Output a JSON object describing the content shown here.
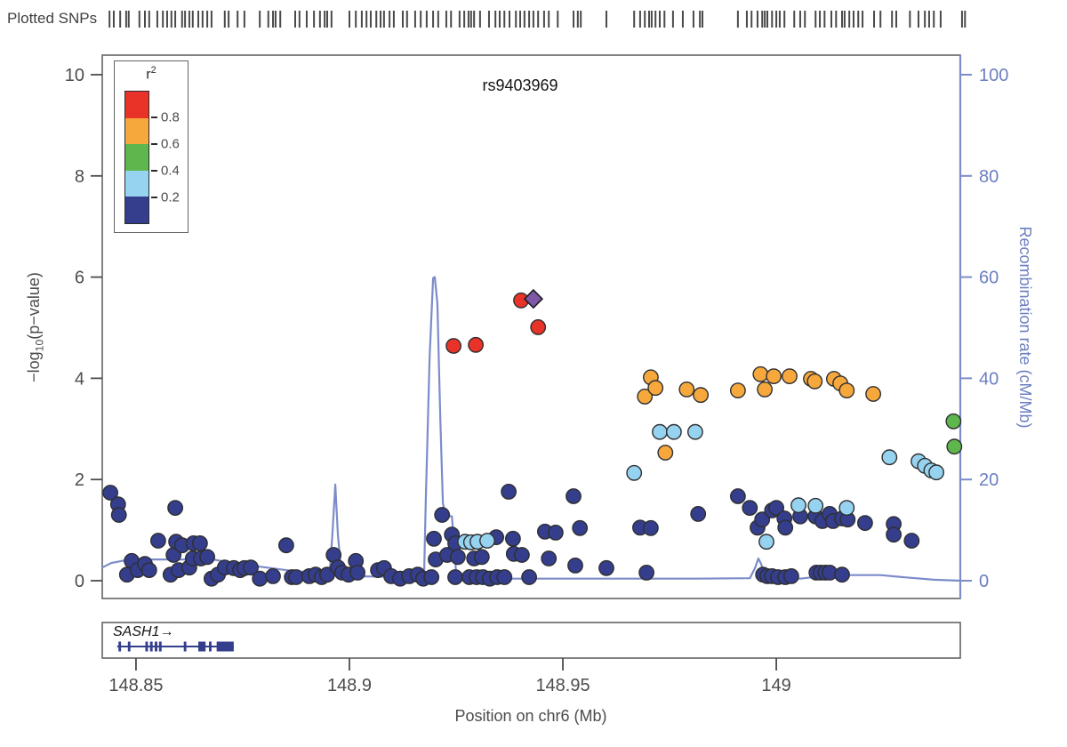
{
  "figure": {
    "rug_label": "Plotted SNPs",
    "title": "rs9403969",
    "x_axis": {
      "label": "Position on chr6 (Mb)",
      "tick_labels": [
        "148.85",
        "148.9",
        "148.95",
        "149"
      ],
      "tick_values": [
        148.85,
        148.9,
        148.95,
        149.0
      ]
    },
    "y_left": {
      "label_prefix": "−log",
      "label_sub": "10",
      "label_suffix": "(p−value)",
      "tick_values": [
        0,
        2,
        4,
        6,
        8,
        10
      ]
    },
    "y_right": {
      "label": "Recombination rate (cM/Mb)",
      "tick_values": [
        0,
        20,
        40,
        60,
        80,
        100
      ]
    },
    "legend": {
      "title_base": "r",
      "title_sup": "2",
      "tick_labels": [
        "0.8",
        "0.6",
        "0.4",
        "0.2"
      ]
    },
    "gene_arrow": "→"
  },
  "colors": {
    "r2_80_100": "#EA3328",
    "r2_60_80": "#F7A83D",
    "r2_40_60": "#5EB64C",
    "r2_20_40": "#96D3F0",
    "r2_0_20": "#343E8D",
    "index_snp": "#7E57A5",
    "recomb_line": "#7B8CC9",
    "right_axis_text": "#6B7EC0",
    "axis_gray": "#636365",
    "tick_text": "#4C4C4E",
    "rug_tick": "#4A4A4C",
    "point_stroke": "#2F2F31",
    "gene": "#343E8D"
  },
  "chart_data": {
    "type": "scatter",
    "title": "rs9403969",
    "xlabel": "Position on chr6 (Mb)",
    "ylabel_left": "-log10(p-value)",
    "ylabel_right": "Recombination rate (cM/Mb)",
    "xlim": [
      148.8421,
      149.0431
    ],
    "ylim_left": [
      0,
      10.4
    ],
    "ylim_right": [
      0,
      104
    ],
    "legend_bins": [
      "0.8-1.0",
      "0.6-0.8",
      "0.4-0.6",
      "0.2-0.4",
      "0.0-0.2"
    ],
    "index_snp": {
      "name": "rs9403969",
      "pos": 148.9431,
      "logp": 5.57
    },
    "series": [
      {
        "name": "r2_0.0_0.2",
        "color_key": "r2_0_20",
        "points": [
          [
            148.844,
            1.74
          ],
          [
            148.8458,
            1.51
          ],
          [
            148.846,
            1.3
          ],
          [
            148.8479,
            0.12
          ],
          [
            148.849,
            0.39
          ],
          [
            148.8504,
            0.21
          ],
          [
            148.8521,
            0.33
          ],
          [
            148.8531,
            0.21
          ],
          [
            148.8552,
            0.79
          ],
          [
            148.8581,
            0.12
          ],
          [
            148.8588,
            0.51
          ],
          [
            148.8592,
            1.44
          ],
          [
            148.8594,
            0.77
          ],
          [
            148.8608,
            0.7
          ],
          [
            148.86,
            0.21
          ],
          [
            148.8625,
            0.26
          ],
          [
            148.8635,
            0.74
          ],
          [
            148.865,
            0.74
          ],
          [
            148.8633,
            0.44
          ],
          [
            148.8652,
            0.44
          ],
          [
            148.8667,
            0.47
          ],
          [
            148.8677,
            0.04
          ],
          [
            148.8692,
            0.12
          ],
          [
            148.8708,
            0.26
          ],
          [
            148.8729,
            0.25
          ],
          [
            148.8744,
            0.21
          ],
          [
            148.8754,
            0.25
          ],
          [
            148.8769,
            0.26
          ],
          [
            148.879,
            0.04
          ],
          [
            148.8821,
            0.09
          ],
          [
            148.8852,
            0.7
          ],
          [
            148.8865,
            0.07
          ],
          [
            148.8875,
            0.07
          ],
          [
            148.8906,
            0.09
          ],
          [
            148.8921,
            0.12
          ],
          [
            148.8935,
            0.07
          ],
          [
            148.8948,
            0.12
          ],
          [
            148.8963,
            0.51
          ],
          [
            148.8973,
            0.26
          ],
          [
            148.8983,
            0.16
          ],
          [
            148.8998,
            0.12
          ],
          [
            148.9015,
            0.39
          ],
          [
            148.9019,
            0.16
          ],
          [
            148.9067,
            0.21
          ],
          [
            148.9081,
            0.25
          ],
          [
            148.9098,
            0.09
          ],
          [
            148.9119,
            0.04
          ],
          [
            148.914,
            0.09
          ],
          [
            148.916,
            0.12
          ],
          [
            148.9173,
            0.04
          ],
          [
            148.9192,
            0.07
          ],
          [
            148.9198,
            0.83
          ],
          [
            148.9202,
            0.42
          ],
          [
            148.9217,
            1.3
          ],
          [
            148.9229,
            0.51
          ],
          [
            148.924,
            0.91
          ],
          [
            148.9248,
            0.74
          ],
          [
            148.9248,
            0.07
          ],
          [
            148.9254,
            0.47
          ],
          [
            148.9281,
            0.07
          ],
          [
            148.9292,
            0.44
          ],
          [
            148.9298,
            0.07
          ],
          [
            148.931,
            0.47
          ],
          [
            148.9313,
            0.07
          ],
          [
            148.9329,
            0.04
          ],
          [
            148.9344,
            0.86
          ],
          [
            148.9346,
            0.07
          ],
          [
            148.9363,
            0.07
          ],
          [
            148.9373,
            1.76
          ],
          [
            148.9383,
            0.83
          ],
          [
            148.9385,
            0.53
          ],
          [
            148.9404,
            0.51
          ],
          [
            148.9421,
            0.07
          ],
          [
            148.9458,
            0.97
          ],
          [
            148.9467,
            0.44
          ],
          [
            148.9483,
            0.95
          ],
          [
            148.9525,
            1.67
          ],
          [
            148.9529,
            0.3
          ],
          [
            148.954,
            1.04
          ],
          [
            148.9602,
            0.25
          ],
          [
            148.9681,
            1.05
          ],
          [
            148.9696,
            0.16
          ],
          [
            148.9706,
            1.04
          ],
          [
            148.9817,
            1.32
          ],
          [
            148.991,
            1.67
          ],
          [
            148.9938,
            1.44
          ],
          [
            148.9956,
            1.05
          ],
          [
            148.9967,
            1.21
          ],
          [
            148.9969,
            0.12
          ],
          [
            148.9979,
            0.09
          ],
          [
            148.999,
            1.39
          ],
          [
            148.999,
            0.09
          ],
          [
            149.0,
            1.44
          ],
          [
            149.0004,
            0.07
          ],
          [
            149.0019,
            1.23
          ],
          [
            149.0021,
            1.05
          ],
          [
            149.0021,
            0.07
          ],
          [
            149.0035,
            0.09
          ],
          [
            149.0056,
            1.27
          ],
          [
            149.0092,
            1.27
          ],
          [
            149.0094,
            0.16
          ],
          [
            149.0104,
            0.16
          ],
          [
            149.0108,
            1.18
          ],
          [
            149.0115,
            0.16
          ],
          [
            149.0125,
            1.32
          ],
          [
            149.0125,
            0.16
          ],
          [
            149.0133,
            1.18
          ],
          [
            149.0154,
            1.23
          ],
          [
            149.0154,
            0.12
          ],
          [
            149.0167,
            1.21
          ],
          [
            149.0208,
            1.14
          ],
          [
            149.0275,
            1.12
          ],
          [
            149.0275,
            0.91
          ],
          [
            149.0317,
            0.79
          ]
        ]
      },
      {
        "name": "r2_0.2_0.4",
        "color_key": "r2_20_40",
        "points": [
          [
            148.9271,
            0.77
          ],
          [
            148.9285,
            0.76
          ],
          [
            148.93,
            0.77
          ],
          [
            148.9323,
            0.79
          ],
          [
            148.9667,
            2.13
          ],
          [
            148.9727,
            2.94
          ],
          [
            148.976,
            2.94
          ],
          [
            148.981,
            2.94
          ],
          [
            148.9977,
            0.77
          ],
          [
            149.0052,
            1.49
          ],
          [
            149.0092,
            1.48
          ],
          [
            149.0165,
            1.44
          ],
          [
            149.0265,
            2.44
          ],
          [
            149.0333,
            2.36
          ],
          [
            149.0348,
            2.27
          ],
          [
            149.0363,
            2.18
          ],
          [
            149.0375,
            2.14
          ]
        ]
      },
      {
        "name": "r2_0.4_0.6",
        "color_key": "r2_40_60",
        "points": [
          [
            149.0415,
            3.15
          ],
          [
            149.0417,
            2.65
          ]
        ]
      },
      {
        "name": "r2_0.6_0.8",
        "color_key": "r2_60_80",
        "points": [
          [
            148.9692,
            3.64
          ],
          [
            148.9706,
            4.02
          ],
          [
            148.9717,
            3.81
          ],
          [
            148.974,
            2.53
          ],
          [
            148.979,
            3.78
          ],
          [
            148.9823,
            3.67
          ],
          [
            148.991,
            3.76
          ],
          [
            148.9963,
            4.08
          ],
          [
            148.9973,
            3.78
          ],
          [
            148.9994,
            4.04
          ],
          [
            149.0031,
            4.04
          ],
          [
            149.0081,
            3.99
          ],
          [
            149.009,
            3.94
          ],
          [
            149.0135,
            3.99
          ],
          [
            149.015,
            3.9
          ],
          [
            149.0165,
            3.76
          ],
          [
            149.0227,
            3.69
          ]
        ]
      },
      {
        "name": "r2_0.8_1.0",
        "color_key": "r2_80_100",
        "points": [
          [
            148.9244,
            4.64
          ],
          [
            148.9296,
            4.66
          ],
          [
            148.9402,
            5.54
          ],
          [
            148.9442,
            5.01
          ]
        ]
      }
    ],
    "recomb_line": [
      [
        148.8421,
        2.6
      ],
      [
        148.8442,
        3.5
      ],
      [
        148.8473,
        4.0
      ],
      [
        148.8535,
        4.2
      ],
      [
        148.8681,
        4.2
      ],
      [
        148.8723,
        3.5
      ],
      [
        148.8806,
        2.6
      ],
      [
        148.8869,
        1.9
      ],
      [
        148.8931,
        1.6
      ],
      [
        148.8954,
        1.9
      ],
      [
        148.896,
        9.1
      ],
      [
        148.8967,
        19.0
      ],
      [
        148.8973,
        9.1
      ],
      [
        148.8981,
        1.6
      ],
      [
        148.8994,
        0.9
      ],
      [
        148.916,
        0.7
      ],
      [
        148.9175,
        1.4
      ],
      [
        148.9179,
        16.2
      ],
      [
        148.9188,
        44.3
      ],
      [
        148.9196,
        59.8
      ],
      [
        148.92,
        60.0
      ],
      [
        148.9206,
        54.8
      ],
      [
        148.9213,
        32.0
      ],
      [
        148.9219,
        15.3
      ],
      [
        148.9225,
        13.0
      ],
      [
        148.924,
        12.7
      ],
      [
        148.9246,
        6.5
      ],
      [
        148.925,
        1.2
      ],
      [
        148.9265,
        0.7
      ],
      [
        148.9348,
        0.4
      ],
      [
        148.9473,
        0.4
      ],
      [
        148.964,
        0.4
      ],
      [
        148.9806,
        0.4
      ],
      [
        148.9938,
        0.5
      ],
      [
        148.995,
        2.5
      ],
      [
        148.9958,
        4.4
      ],
      [
        148.9965,
        3.2
      ],
      [
        148.9971,
        1.2
      ],
      [
        148.9983,
        0.7
      ],
      [
        149.0056,
        0.4
      ],
      [
        149.0108,
        0.9
      ],
      [
        149.0171,
        1.1
      ],
      [
        149.0244,
        1.1
      ],
      [
        149.0296,
        0.7
      ],
      [
        149.0369,
        0.2
      ],
      [
        149.0431,
        0.0
      ]
    ],
    "snp_rug_positions": [
      148.8438,
      148.8448,
      148.8463,
      148.8477,
      148.8483,
      148.8508,
      148.8521,
      148.8531,
      148.855,
      148.8563,
      148.8573,
      148.8583,
      148.8592,
      148.8608,
      148.8615,
      148.8625,
      148.8633,
      148.8646,
      148.8656,
      148.8667,
      148.8677,
      148.8708,
      148.8717,
      148.8738,
      148.8754,
      148.879,
      148.881,
      148.8821,
      148.8827,
      148.8838,
      148.8873,
      148.8883,
      148.89,
      148.8917,
      148.8931,
      148.8942,
      148.8948,
      148.8958,
      148.9,
      148.9015,
      148.9029,
      148.904,
      148.905,
      148.9063,
      148.9073,
      148.9081,
      148.9094,
      148.9104,
      148.9125,
      148.9135,
      148.9154,
      148.9167,
      148.9181,
      148.9196,
      148.9208,
      148.9227,
      148.9238,
      148.9258,
      148.9269,
      148.9279,
      148.9285,
      148.9292,
      148.9306,
      148.9327,
      148.9342,
      148.9352,
      148.9363,
      148.9375,
      148.939,
      148.94,
      148.941,
      148.9421,
      148.9431,
      148.9442,
      148.9456,
      148.9467,
      148.9488,
      148.9525,
      148.9535,
      148.9542,
      148.9602,
      148.9667,
      148.9681,
      148.9692,
      148.9702,
      148.9708,
      148.9717,
      148.9727,
      148.9738,
      148.9758,
      148.9781,
      148.9806,
      148.9821,
      148.9827,
      148.991,
      148.9931,
      148.9942,
      148.9956,
      148.9967,
      148.9973,
      148.9979,
      148.999,
      149.0,
      149.0008,
      149.0019,
      149.0042,
      149.0056,
      149.0067,
      149.0092,
      149.0102,
      149.0113,
      149.0129,
      149.014,
      149.0154,
      149.016,
      149.0171,
      149.0181,
      149.0192,
      149.0202,
      149.0229,
      149.0244,
      149.0271,
      149.0281,
      149.0313,
      149.0333,
      149.0348,
      149.0358,
      149.0369,
      149.0385,
      149.0435,
      149.0442
    ],
    "gene_track": {
      "gene": {
        "name": "SASH1",
        "strand": "+",
        "start": 148.8456,
        "end": 148.8729,
        "exons": [
          [
            148.8459,
            148.8465
          ],
          [
            148.8481,
            148.8487
          ],
          [
            148.8522,
            148.8528
          ],
          [
            148.8533,
            148.8539
          ],
          [
            148.8544,
            148.855
          ],
          [
            148.8554,
            148.856
          ],
          [
            148.8612,
            148.8618
          ],
          [
            148.8646,
            148.8663
          ],
          [
            148.8671,
            148.8677
          ],
          [
            148.8689,
            148.8729
          ]
        ]
      }
    }
  }
}
